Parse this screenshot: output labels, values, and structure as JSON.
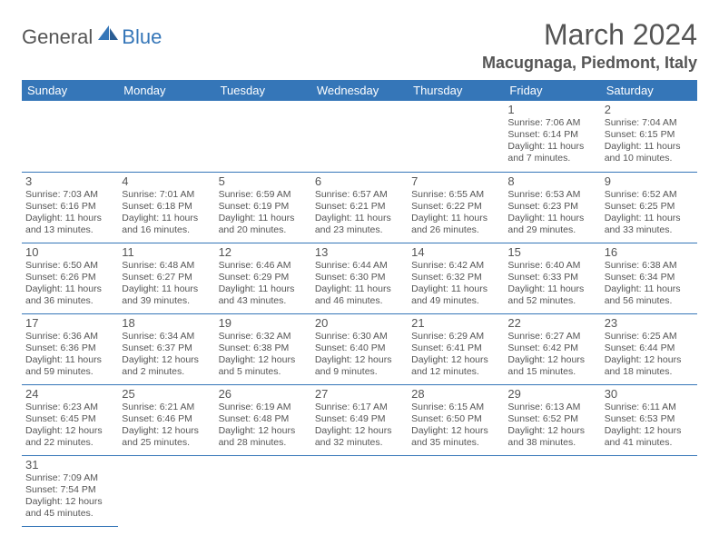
{
  "logo": {
    "text1": "General",
    "text2": "Blue"
  },
  "title": "March 2024",
  "location": "Macugnaga, Piedmont, Italy",
  "colors": {
    "header_bg": "#3576b8",
    "header_text": "#ffffff",
    "border": "#3576b8",
    "text": "#555555",
    "background": "#ffffff"
  },
  "weekdays": [
    "Sunday",
    "Monday",
    "Tuesday",
    "Wednesday",
    "Thursday",
    "Friday",
    "Saturday"
  ],
  "days": {
    "1": {
      "sunrise": "7:06 AM",
      "sunset": "6:14 PM",
      "daylight": "11 hours and 7 minutes."
    },
    "2": {
      "sunrise": "7:04 AM",
      "sunset": "6:15 PM",
      "daylight": "11 hours and 10 minutes."
    },
    "3": {
      "sunrise": "7:03 AM",
      "sunset": "6:16 PM",
      "daylight": "11 hours and 13 minutes."
    },
    "4": {
      "sunrise": "7:01 AM",
      "sunset": "6:18 PM",
      "daylight": "11 hours and 16 minutes."
    },
    "5": {
      "sunrise": "6:59 AM",
      "sunset": "6:19 PM",
      "daylight": "11 hours and 20 minutes."
    },
    "6": {
      "sunrise": "6:57 AM",
      "sunset": "6:21 PM",
      "daylight": "11 hours and 23 minutes."
    },
    "7": {
      "sunrise": "6:55 AM",
      "sunset": "6:22 PM",
      "daylight": "11 hours and 26 minutes."
    },
    "8": {
      "sunrise": "6:53 AM",
      "sunset": "6:23 PM",
      "daylight": "11 hours and 29 minutes."
    },
    "9": {
      "sunrise": "6:52 AM",
      "sunset": "6:25 PM",
      "daylight": "11 hours and 33 minutes."
    },
    "10": {
      "sunrise": "6:50 AM",
      "sunset": "6:26 PM",
      "daylight": "11 hours and 36 minutes."
    },
    "11": {
      "sunrise": "6:48 AM",
      "sunset": "6:27 PM",
      "daylight": "11 hours and 39 minutes."
    },
    "12": {
      "sunrise": "6:46 AM",
      "sunset": "6:29 PM",
      "daylight": "11 hours and 43 minutes."
    },
    "13": {
      "sunrise": "6:44 AM",
      "sunset": "6:30 PM",
      "daylight": "11 hours and 46 minutes."
    },
    "14": {
      "sunrise": "6:42 AM",
      "sunset": "6:32 PM",
      "daylight": "11 hours and 49 minutes."
    },
    "15": {
      "sunrise": "6:40 AM",
      "sunset": "6:33 PM",
      "daylight": "11 hours and 52 minutes."
    },
    "16": {
      "sunrise": "6:38 AM",
      "sunset": "6:34 PM",
      "daylight": "11 hours and 56 minutes."
    },
    "17": {
      "sunrise": "6:36 AM",
      "sunset": "6:36 PM",
      "daylight": "11 hours and 59 minutes."
    },
    "18": {
      "sunrise": "6:34 AM",
      "sunset": "6:37 PM",
      "daylight": "12 hours and 2 minutes."
    },
    "19": {
      "sunrise": "6:32 AM",
      "sunset": "6:38 PM",
      "daylight": "12 hours and 5 minutes."
    },
    "20": {
      "sunrise": "6:30 AM",
      "sunset": "6:40 PM",
      "daylight": "12 hours and 9 minutes."
    },
    "21": {
      "sunrise": "6:29 AM",
      "sunset": "6:41 PM",
      "daylight": "12 hours and 12 minutes."
    },
    "22": {
      "sunrise": "6:27 AM",
      "sunset": "6:42 PM",
      "daylight": "12 hours and 15 minutes."
    },
    "23": {
      "sunrise": "6:25 AM",
      "sunset": "6:44 PM",
      "daylight": "12 hours and 18 minutes."
    },
    "24": {
      "sunrise": "6:23 AM",
      "sunset": "6:45 PM",
      "daylight": "12 hours and 22 minutes."
    },
    "25": {
      "sunrise": "6:21 AM",
      "sunset": "6:46 PM",
      "daylight": "12 hours and 25 minutes."
    },
    "26": {
      "sunrise": "6:19 AM",
      "sunset": "6:48 PM",
      "daylight": "12 hours and 28 minutes."
    },
    "27": {
      "sunrise": "6:17 AM",
      "sunset": "6:49 PM",
      "daylight": "12 hours and 32 minutes."
    },
    "28": {
      "sunrise": "6:15 AM",
      "sunset": "6:50 PM",
      "daylight": "12 hours and 35 minutes."
    },
    "29": {
      "sunrise": "6:13 AM",
      "sunset": "6:52 PM",
      "daylight": "12 hours and 38 minutes."
    },
    "30": {
      "sunrise": "6:11 AM",
      "sunset": "6:53 PM",
      "daylight": "12 hours and 41 minutes."
    },
    "31": {
      "sunrise": "7:09 AM",
      "sunset": "7:54 PM",
      "daylight": "12 hours and 45 minutes."
    }
  },
  "labels": {
    "sunrise": "Sunrise:",
    "sunset": "Sunset:",
    "daylight": "Daylight:"
  },
  "layout": {
    "first_weekday_index": 5,
    "num_days": 31,
    "columns": 7
  },
  "typography": {
    "title_fontsize": 32,
    "location_fontsize": 18,
    "weekday_fontsize": 13,
    "daynum_fontsize": 13,
    "dayinfo_fontsize": 10.5
  }
}
